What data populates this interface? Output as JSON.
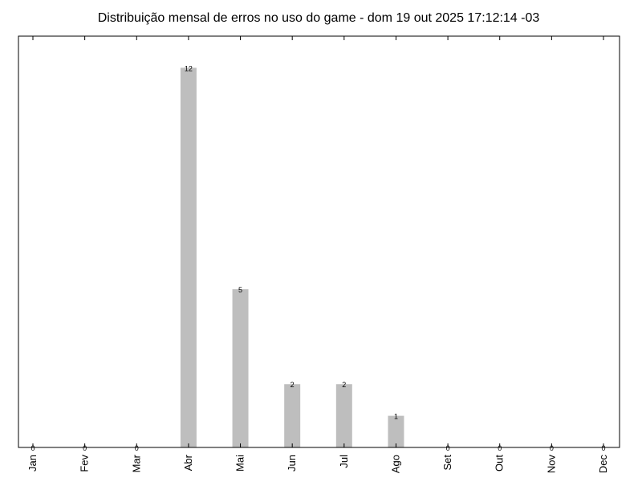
{
  "chart_data": {
    "type": "bar",
    "title": "Distribuição mensal de erros no uso do game - dom 19 out 2025 17:12:14 -03",
    "xlabel": "",
    "ylabel": "",
    "categories": [
      "Jan",
      "Fev",
      "Mar",
      "Abr",
      "Mai",
      "Jun",
      "Jul",
      "Ago",
      "Set",
      "Out",
      "Nov",
      "Dec"
    ],
    "values": [
      0,
      0,
      0,
      12,
      5,
      2,
      2,
      1,
      0,
      0,
      0,
      0
    ],
    "data_labels": [
      "0",
      "0",
      "0",
      "12",
      "5",
      "2",
      "2",
      "1",
      "0",
      "0",
      "0",
      "0"
    ],
    "ylim": [
      0,
      13
    ],
    "grid": false,
    "legend": "none",
    "colors": {
      "bar": "#bebebe",
      "axis": "#000000",
      "background": "#ffffff"
    }
  }
}
